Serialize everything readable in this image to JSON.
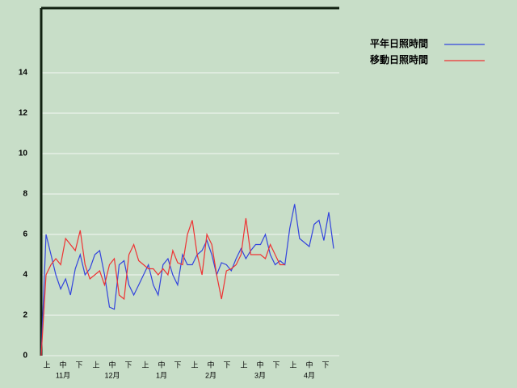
{
  "chart_data": {
    "type": "line",
    "decades": [
      "上",
      "中",
      "下",
      "上",
      "中",
      "下",
      "上",
      "中",
      "下",
      "上",
      "中",
      "下",
      "上",
      "中",
      "下",
      "上",
      "中",
      "下"
    ],
    "months": [
      "11月",
      "12月",
      "1月",
      "2月",
      "3月",
      "4月"
    ],
    "series": [
      {
        "name": "平年日照時間",
        "color": "#3344dd",
        "values": [
          0,
          6.0,
          5.0,
          4.0,
          3.3,
          3.8,
          3.0,
          4.3,
          5.0,
          4.0,
          4.3,
          5.0,
          5.2,
          4.0,
          2.4,
          2.3,
          4.5,
          4.7,
          3.5,
          3.0,
          3.5,
          4.0,
          4.5,
          3.5,
          3.0,
          4.5,
          4.8,
          4.0,
          3.5,
          5.0,
          4.5,
          4.5,
          5.0,
          5.2,
          5.7,
          5.0,
          4.0,
          4.6,
          4.5,
          4.2,
          4.8,
          5.3,
          4.8,
          5.2,
          5.5,
          5.5,
          6.0,
          5.0,
          4.5,
          4.7,
          4.5,
          6.3,
          7.5,
          5.8,
          5.6,
          5.4,
          6.5,
          6.7,
          5.7,
          7.1,
          5.3
        ]
      },
      {
        "name": "移動日照時間",
        "color": "#ee3333",
        "values": [
          0,
          4.0,
          4.5,
          4.8,
          4.5,
          5.8,
          5.5,
          5.2,
          6.2,
          4.5,
          3.8,
          4.0,
          4.2,
          3.5,
          4.5,
          4.8,
          3.0,
          2.8,
          5.0,
          5.5,
          4.7,
          4.5,
          4.3,
          4.3,
          4.0,
          4.3,
          4.0,
          5.2,
          4.6,
          4.5,
          6.0,
          6.7,
          5.0,
          4.0,
          6.0,
          5.5,
          4.0,
          2.8,
          4.2,
          4.3,
          4.5,
          5.0,
          6.8,
          5.0,
          5.0,
          5.0,
          4.8,
          5.5,
          5.0,
          4.5,
          4.5,
          null,
          null,
          null,
          null,
          null,
          null,
          null,
          null,
          null,
          null
        ]
      }
    ],
    "ylim": [
      0,
      17.2
    ],
    "yticks": [
      0,
      2,
      4,
      6,
      8,
      10,
      12,
      14
    ],
    "grid": true
  }
}
